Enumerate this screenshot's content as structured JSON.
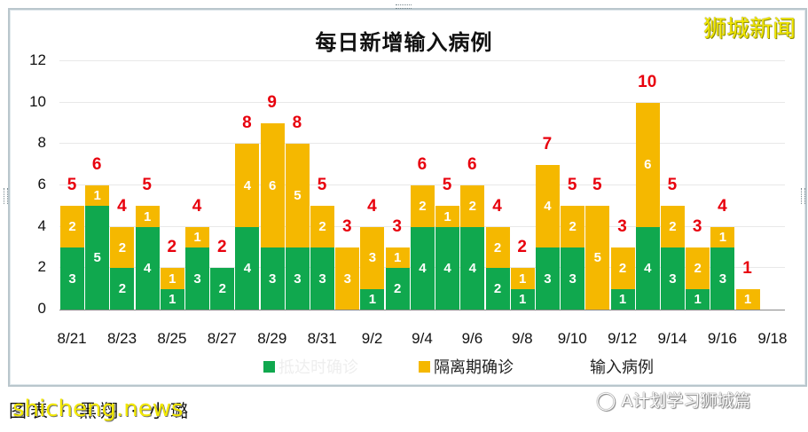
{
  "chart_data": {
    "type": "bar",
    "stacked": true,
    "title": "每日新增输入病例",
    "xlabel": "",
    "ylabel": "",
    "ylim": [
      0,
      12
    ],
    "yticks": [
      0,
      2,
      4,
      6,
      8,
      10,
      12
    ],
    "grid": true,
    "legend_position": "bottom",
    "categories": [
      "8/21",
      "8/22",
      "8/23",
      "8/24",
      "8/25",
      "8/26",
      "8/27",
      "8/28",
      "8/29",
      "8/30",
      "8/31",
      "9/1",
      "9/2",
      "9/3",
      "9/4",
      "9/5",
      "9/6",
      "9/7",
      "9/8",
      "9/9",
      "9/10",
      "9/11",
      "9/12",
      "9/13",
      "9/14",
      "9/15",
      "9/16",
      "9/17",
      "9/18"
    ],
    "xtick_labels": [
      "8/21",
      "8/23",
      "8/25",
      "8/27",
      "8/29",
      "8/31",
      "9/2",
      "9/4",
      "9/6",
      "9/8",
      "9/10",
      "9/12",
      "9/14",
      "9/16",
      "9/18"
    ],
    "series": [
      {
        "name": "抵达时确诊",
        "color": "#10a84e",
        "values": [
          3,
          5,
          2,
          4,
          1,
          3,
          2,
          4,
          3,
          3,
          3,
          0,
          1,
          2,
          4,
          4,
          4,
          2,
          1,
          3,
          3,
          0,
          1,
          4,
          3,
          1,
          3,
          0,
          null
        ]
      },
      {
        "name": "隔离期确诊",
        "color": "#f5b800",
        "values": [
          2,
          1,
          2,
          1,
          1,
          1,
          0,
          4,
          6,
          5,
          2,
          3,
          3,
          1,
          2,
          1,
          2,
          2,
          1,
          4,
          2,
          5,
          2,
          6,
          2,
          2,
          1,
          1,
          null
        ]
      },
      {
        "name": "输入病例",
        "color": "#e8000d",
        "values": [
          5,
          6,
          4,
          5,
          2,
          4,
          2,
          8,
          9,
          8,
          5,
          3,
          4,
          3,
          6,
          5,
          6,
          4,
          2,
          7,
          5,
          5,
          3,
          10,
          5,
          3,
          4,
          1,
          null
        ]
      }
    ]
  },
  "watermark_top": "狮城新闻",
  "caption": "图表 · 黑翔 · 小璐",
  "caption_watermark": "shicheng.news",
  "wechat_label": "A计划学习狮城篇"
}
